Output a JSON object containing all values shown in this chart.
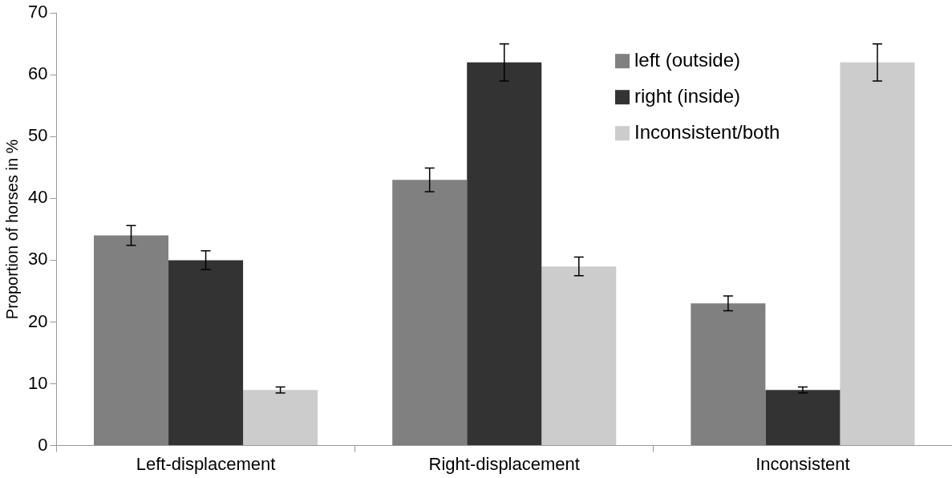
{
  "chart_data": {
    "type": "bar",
    "ylabel": "Proportion of horses in %",
    "categories": [
      "Left-displacement",
      "Right-displacement",
      "Inconsistent"
    ],
    "series": [
      {
        "name": "left (outside)",
        "color": "#808080",
        "values": [
          34,
          43,
          23
        ],
        "errors": [
          1.6,
          1.9,
          1.2
        ]
      },
      {
        "name": "right (inside)",
        "color": "#333333",
        "values": [
          30,
          62,
          9
        ],
        "errors": [
          1.5,
          3,
          0.5
        ]
      },
      {
        "name": "Inconsistent/both",
        "color": "#cccccc",
        "values": [
          9,
          29,
          62
        ],
        "errors": [
          0.5,
          1.5,
          3
        ]
      }
    ],
    "ylim": [
      0,
      70
    ],
    "yticks": [
      0,
      10,
      20,
      30,
      40,
      50,
      60,
      70
    ],
    "grid": false,
    "legend": "top right"
  }
}
